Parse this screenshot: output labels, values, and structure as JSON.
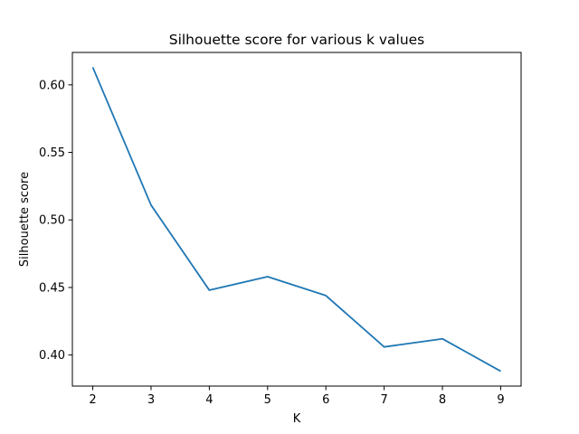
{
  "chart_data": {
    "type": "line",
    "title": "Silhouette score for various k values",
    "xlabel": "K",
    "ylabel": "Silhouette score",
    "x": [
      2,
      3,
      4,
      5,
      6,
      7,
      8,
      9
    ],
    "series": [
      {
        "values": [
          0.613,
          0.511,
          0.448,
          0.458,
          0.444,
          0.406,
          0.412,
          0.388
        ],
        "color": "#1f77b4"
      }
    ],
    "xlim": [
      1.65,
      9.35
    ],
    "ylim": [
      0.377,
      0.624
    ],
    "xticks": [
      2,
      3,
      4,
      5,
      6,
      7,
      8,
      9
    ],
    "yticks": [
      0.4,
      0.45,
      0.5,
      0.55,
      0.6
    ],
    "ytick_labels": [
      "0.40",
      "0.45",
      "0.50",
      "0.55",
      "0.60"
    ],
    "grid": false,
    "legend": "none"
  }
}
